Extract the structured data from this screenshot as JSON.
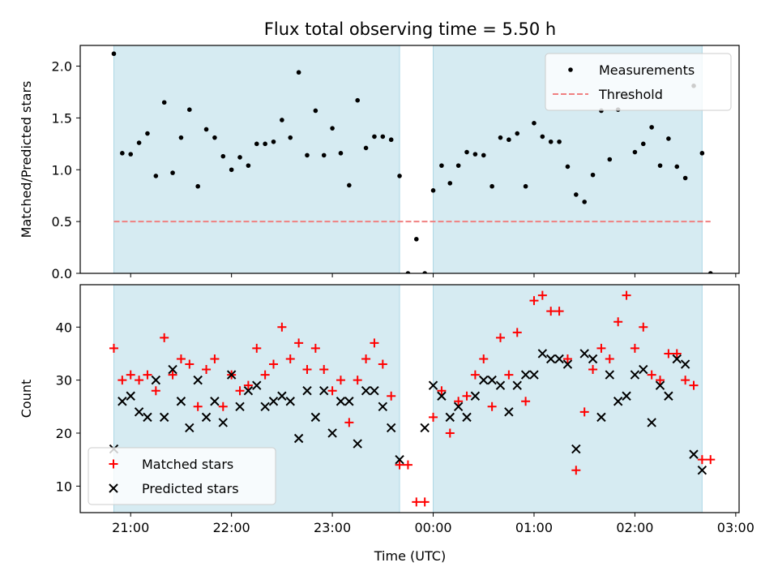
{
  "chart_data": {
    "title": "Flux total observing time = 5.50 h",
    "xlabel": "Time (UTC)",
    "x_ticks": [
      "21:00",
      "22:00",
      "23:00",
      "00:00",
      "01:00",
      "02:00",
      "03:00"
    ],
    "x_range": [
      "20:30",
      "03:02"
    ],
    "shaded_intervals": [
      [
        "20:50",
        "23:40"
      ],
      [
        "00:00",
        "02:40"
      ]
    ],
    "shade_color": "#add8e6",
    "panels": [
      {
        "type": "scatter",
        "ylabel": "Matched/Predicted stars",
        "ylim": [
          0,
          2.2
        ],
        "yticks": [
          "0.0",
          "0.5",
          "1.0",
          "1.5",
          "2.0"
        ],
        "threshold": {
          "name": "Threshold",
          "value": 0.5,
          "x_range": [
            "20:50",
            "02:45"
          ],
          "color": "#f08080"
        },
        "legend_position": "upper right",
        "series": [
          {
            "name": "Measurements",
            "marker": "dot",
            "color": "#000000",
            "points": [
              [
                "20:50",
                2.12
              ],
              [
                "20:55",
                1.16
              ],
              [
                "21:00",
                1.15
              ],
              [
                "21:05",
                1.26
              ],
              [
                "21:10",
                1.35
              ],
              [
                "21:15",
                0.94
              ],
              [
                "21:20",
                1.65
              ],
              [
                "21:25",
                0.97
              ],
              [
                "21:30",
                1.31
              ],
              [
                "21:35",
                1.58
              ],
              [
                "21:40",
                0.84
              ],
              [
                "21:45",
                1.39
              ],
              [
                "21:50",
                1.31
              ],
              [
                "21:55",
                1.13
              ],
              [
                "22:00",
                1.0
              ],
              [
                "22:05",
                1.12
              ],
              [
                "22:10",
                1.04
              ],
              [
                "22:15",
                1.25
              ],
              [
                "22:20",
                1.25
              ],
              [
                "22:25",
                1.27
              ],
              [
                "22:30",
                1.48
              ],
              [
                "22:35",
                1.31
              ],
              [
                "22:40",
                1.94
              ],
              [
                "22:45",
                1.14
              ],
              [
                "22:50",
                1.57
              ],
              [
                "22:55",
                1.14
              ],
              [
                "23:00",
                1.4
              ],
              [
                "23:05",
                1.16
              ],
              [
                "23:10",
                0.85
              ],
              [
                "23:15",
                1.67
              ],
              [
                "23:20",
                1.21
              ],
              [
                "23:25",
                1.32
              ],
              [
                "23:30",
                1.32
              ],
              [
                "23:35",
                1.29
              ],
              [
                "23:40",
                0.94
              ],
              [
                "23:45",
                0.0
              ],
              [
                "23:50",
                0.33
              ],
              [
                "23:55",
                0.0
              ],
              [
                "00:00",
                0.8
              ],
              [
                "00:05",
                1.04
              ],
              [
                "00:10",
                0.87
              ],
              [
                "00:15",
                1.04
              ],
              [
                "00:20",
                1.17
              ],
              [
                "00:25",
                1.15
              ],
              [
                "00:30",
                1.14
              ],
              [
                "00:35",
                0.84
              ],
              [
                "00:40",
                1.31
              ],
              [
                "00:45",
                1.29
              ],
              [
                "00:50",
                1.35
              ],
              [
                "00:55",
                0.84
              ],
              [
                "01:00",
                1.45
              ],
              [
                "01:05",
                1.32
              ],
              [
                "01:10",
                1.27
              ],
              [
                "01:15",
                1.27
              ],
              [
                "01:20",
                1.03
              ],
              [
                "01:25",
                0.76
              ],
              [
                "01:30",
                0.69
              ],
              [
                "01:35",
                0.95
              ],
              [
                "01:40",
                1.57
              ],
              [
                "01:45",
                1.1
              ],
              [
                "01:50",
                1.58
              ],
              [
                "01:55",
                1.71
              ],
              [
                "02:00",
                1.17
              ],
              [
                "02:05",
                1.25
              ],
              [
                "02:10",
                1.41
              ],
              [
                "02:15",
                1.04
              ],
              [
                "02:20",
                1.3
              ],
              [
                "02:25",
                1.03
              ],
              [
                "02:30",
                0.92
              ],
              [
                "02:35",
                1.81
              ],
              [
                "02:40",
                1.16
              ],
              [
                "02:45",
                0.0
              ]
            ]
          }
        ]
      },
      {
        "type": "scatter",
        "ylabel": "Count",
        "ylim": [
          5,
          48
        ],
        "yticks": [
          "10",
          "20",
          "30",
          "40"
        ],
        "legend_position": "lower left",
        "series": [
          {
            "name": "Matched stars",
            "marker": "plus",
            "color": "#ff0000",
            "points": [
              [
                "20:50",
                36
              ],
              [
                "20:55",
                30
              ],
              [
                "21:00",
                31
              ],
              [
                "21:05",
                30
              ],
              [
                "21:10",
                31
              ],
              [
                "21:15",
                28
              ],
              [
                "21:20",
                38
              ],
              [
                "21:25",
                31
              ],
              [
                "21:30",
                34
              ],
              [
                "21:35",
                33
              ],
              [
                "21:40",
                25
              ],
              [
                "21:45",
                32
              ],
              [
                "21:50",
                34
              ],
              [
                "21:55",
                25
              ],
              [
                "22:00",
                31
              ],
              [
                "22:05",
                28
              ],
              [
                "22:10",
                29
              ],
              [
                "22:15",
                36
              ],
              [
                "22:20",
                31
              ],
              [
                "22:25",
                33
              ],
              [
                "22:30",
                40
              ],
              [
                "22:35",
                34
              ],
              [
                "22:40",
                37
              ],
              [
                "22:45",
                32
              ],
              [
                "22:50",
                36
              ],
              [
                "22:55",
                32
              ],
              [
                "23:00",
                28
              ],
              [
                "23:05",
                30
              ],
              [
                "23:10",
                22
              ],
              [
                "23:15",
                30
              ],
              [
                "23:20",
                34
              ],
              [
                "23:25",
                37
              ],
              [
                "23:30",
                33
              ],
              [
                "23:35",
                27
              ],
              [
                "23:40",
                14
              ],
              [
                "23:45",
                14
              ],
              [
                "23:50",
                7
              ],
              [
                "23:55",
                7
              ],
              [
                "00:00",
                23
              ],
              [
                "00:05",
                28
              ],
              [
                "00:10",
                20
              ],
              [
                "00:15",
                26
              ],
              [
                "00:20",
                27
              ],
              [
                "00:25",
                31
              ],
              [
                "00:30",
                34
              ],
              [
                "00:35",
                25
              ],
              [
                "00:40",
                38
              ],
              [
                "00:45",
                31
              ],
              [
                "00:50",
                39
              ],
              [
                "00:55",
                26
              ],
              [
                "01:00",
                45
              ],
              [
                "01:05",
                46
              ],
              [
                "01:10",
                43
              ],
              [
                "01:15",
                43
              ],
              [
                "01:20",
                34
              ],
              [
                "01:25",
                13
              ],
              [
                "01:30",
                24
              ],
              [
                "01:35",
                32
              ],
              [
                "01:40",
                36
              ],
              [
                "01:45",
                34
              ],
              [
                "01:50",
                41
              ],
              [
                "01:55",
                46
              ],
              [
                "02:00",
                36
              ],
              [
                "02:05",
                40
              ],
              [
                "02:10",
                31
              ],
              [
                "02:15",
                30
              ],
              [
                "02:20",
                35
              ],
              [
                "02:25",
                35
              ],
              [
                "02:30",
                30
              ],
              [
                "02:35",
                29
              ],
              [
                "02:40",
                15
              ],
              [
                "02:45",
                15
              ]
            ]
          },
          {
            "name": "Predicted stars",
            "marker": "x",
            "color": "#000000",
            "points": [
              [
                "20:50",
                17
              ],
              [
                "20:55",
                26
              ],
              [
                "21:00",
                27
              ],
              [
                "21:05",
                24
              ],
              [
                "21:10",
                23
              ],
              [
                "21:15",
                30
              ],
              [
                "21:20",
                23
              ],
              [
                "21:25",
                32
              ],
              [
                "21:30",
                26
              ],
              [
                "21:35",
                21
              ],
              [
                "21:40",
                30
              ],
              [
                "21:45",
                23
              ],
              [
                "21:50",
                26
              ],
              [
                "21:55",
                22
              ],
              [
                "22:00",
                31
              ],
              [
                "22:05",
                25
              ],
              [
                "22:10",
                28
              ],
              [
                "22:15",
                29
              ],
              [
                "22:20",
                25
              ],
              [
                "22:25",
                26
              ],
              [
                "22:30",
                27
              ],
              [
                "22:35",
                26
              ],
              [
                "22:40",
                19
              ],
              [
                "22:45",
                28
              ],
              [
                "22:50",
                23
              ],
              [
                "22:55",
                28
              ],
              [
                "23:00",
                20
              ],
              [
                "23:05",
                26
              ],
              [
                "23:10",
                26
              ],
              [
                "23:15",
                18
              ],
              [
                "23:20",
                28
              ],
              [
                "23:25",
                28
              ],
              [
                "23:30",
                25
              ],
              [
                "23:35",
                21
              ],
              [
                "23:40",
                15
              ],
              [
                "23:55",
                21
              ],
              [
                "00:00",
                29
              ],
              [
                "00:05",
                27
              ],
              [
                "00:10",
                23
              ],
              [
                "00:15",
                25
              ],
              [
                "00:20",
                23
              ],
              [
                "00:25",
                27
              ],
              [
                "00:30",
                30
              ],
              [
                "00:35",
                30
              ],
              [
                "00:40",
                29
              ],
              [
                "00:45",
                24
              ],
              [
                "00:50",
                29
              ],
              [
                "00:55",
                31
              ],
              [
                "01:00",
                31
              ],
              [
                "01:05",
                35
              ],
              [
                "01:10",
                34
              ],
              [
                "01:15",
                34
              ],
              [
                "01:20",
                33
              ],
              [
                "01:25",
                17
              ],
              [
                "01:30",
                35
              ],
              [
                "01:35",
                34
              ],
              [
                "01:40",
                23
              ],
              [
                "01:45",
                31
              ],
              [
                "01:50",
                26
              ],
              [
                "01:55",
                27
              ],
              [
                "02:00",
                31
              ],
              [
                "02:05",
                32
              ],
              [
                "02:10",
                22
              ],
              [
                "02:15",
                29
              ],
              [
                "02:20",
                27
              ],
              [
                "02:25",
                34
              ],
              [
                "02:30",
                33
              ],
              [
                "02:35",
                16
              ],
              [
                "02:40",
                13
              ]
            ]
          }
        ]
      }
    ]
  }
}
